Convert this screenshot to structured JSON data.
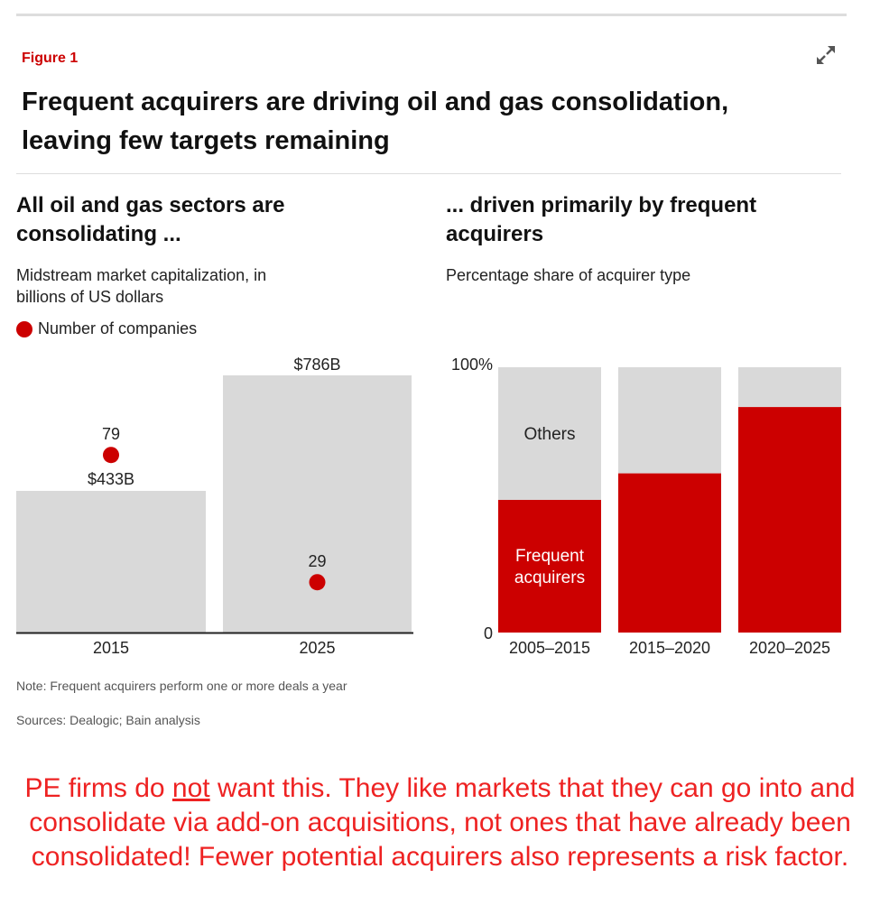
{
  "figure_label": "Figure 1",
  "title": "Frequent acquirers are driving oil and gas consolidation, leaving few targets remaining",
  "expand_icon": "expand-arrows-icon",
  "colors": {
    "red": "#cc0000",
    "gray": "#d9d9d9",
    "comment": "#ee2222"
  },
  "chart_data": [
    {
      "type": "bar",
      "title": "All oil and gas sectors are consolidating ...",
      "subtitle": "Midstream market capitalization, in billions of US dollars",
      "legend": "Number of companies",
      "categories": [
        "2015",
        "2025"
      ],
      "values": [
        433,
        786
      ],
      "value_labels": [
        "$433B",
        "$786B"
      ],
      "companies": [
        79,
        29
      ],
      "company_labels": [
        "79",
        "29"
      ]
    },
    {
      "type": "bar",
      "stacked": true,
      "title": "... driven primarily by frequent acquirers",
      "subtitle": "Percentage share of acquirer type",
      "categories": [
        "2005–2015",
        "2015–2020",
        "2020–2025"
      ],
      "ylim": [
        0,
        100
      ],
      "ytick_labels": [
        "0",
        "100%"
      ],
      "series": [
        {
          "name": "Frequent acquirers",
          "values": [
            50,
            60,
            85
          ]
        },
        {
          "name": "Others",
          "values": [
            50,
            40,
            15
          ]
        }
      ],
      "series_labels": [
        "Frequent acquirers",
        "Others"
      ]
    }
  ],
  "note": "Note: Frequent acquirers perform one or more deals a year",
  "sources": "Sources: Dealogic; Bain analysis",
  "comment": {
    "before": "PE firms do ",
    "underlined": "not",
    "after": " want this. They like markets that they can go into and consolidate via add-on acquisitions, not ones that have already been consolidated! Fewer potential acquirers also represents a risk factor."
  }
}
